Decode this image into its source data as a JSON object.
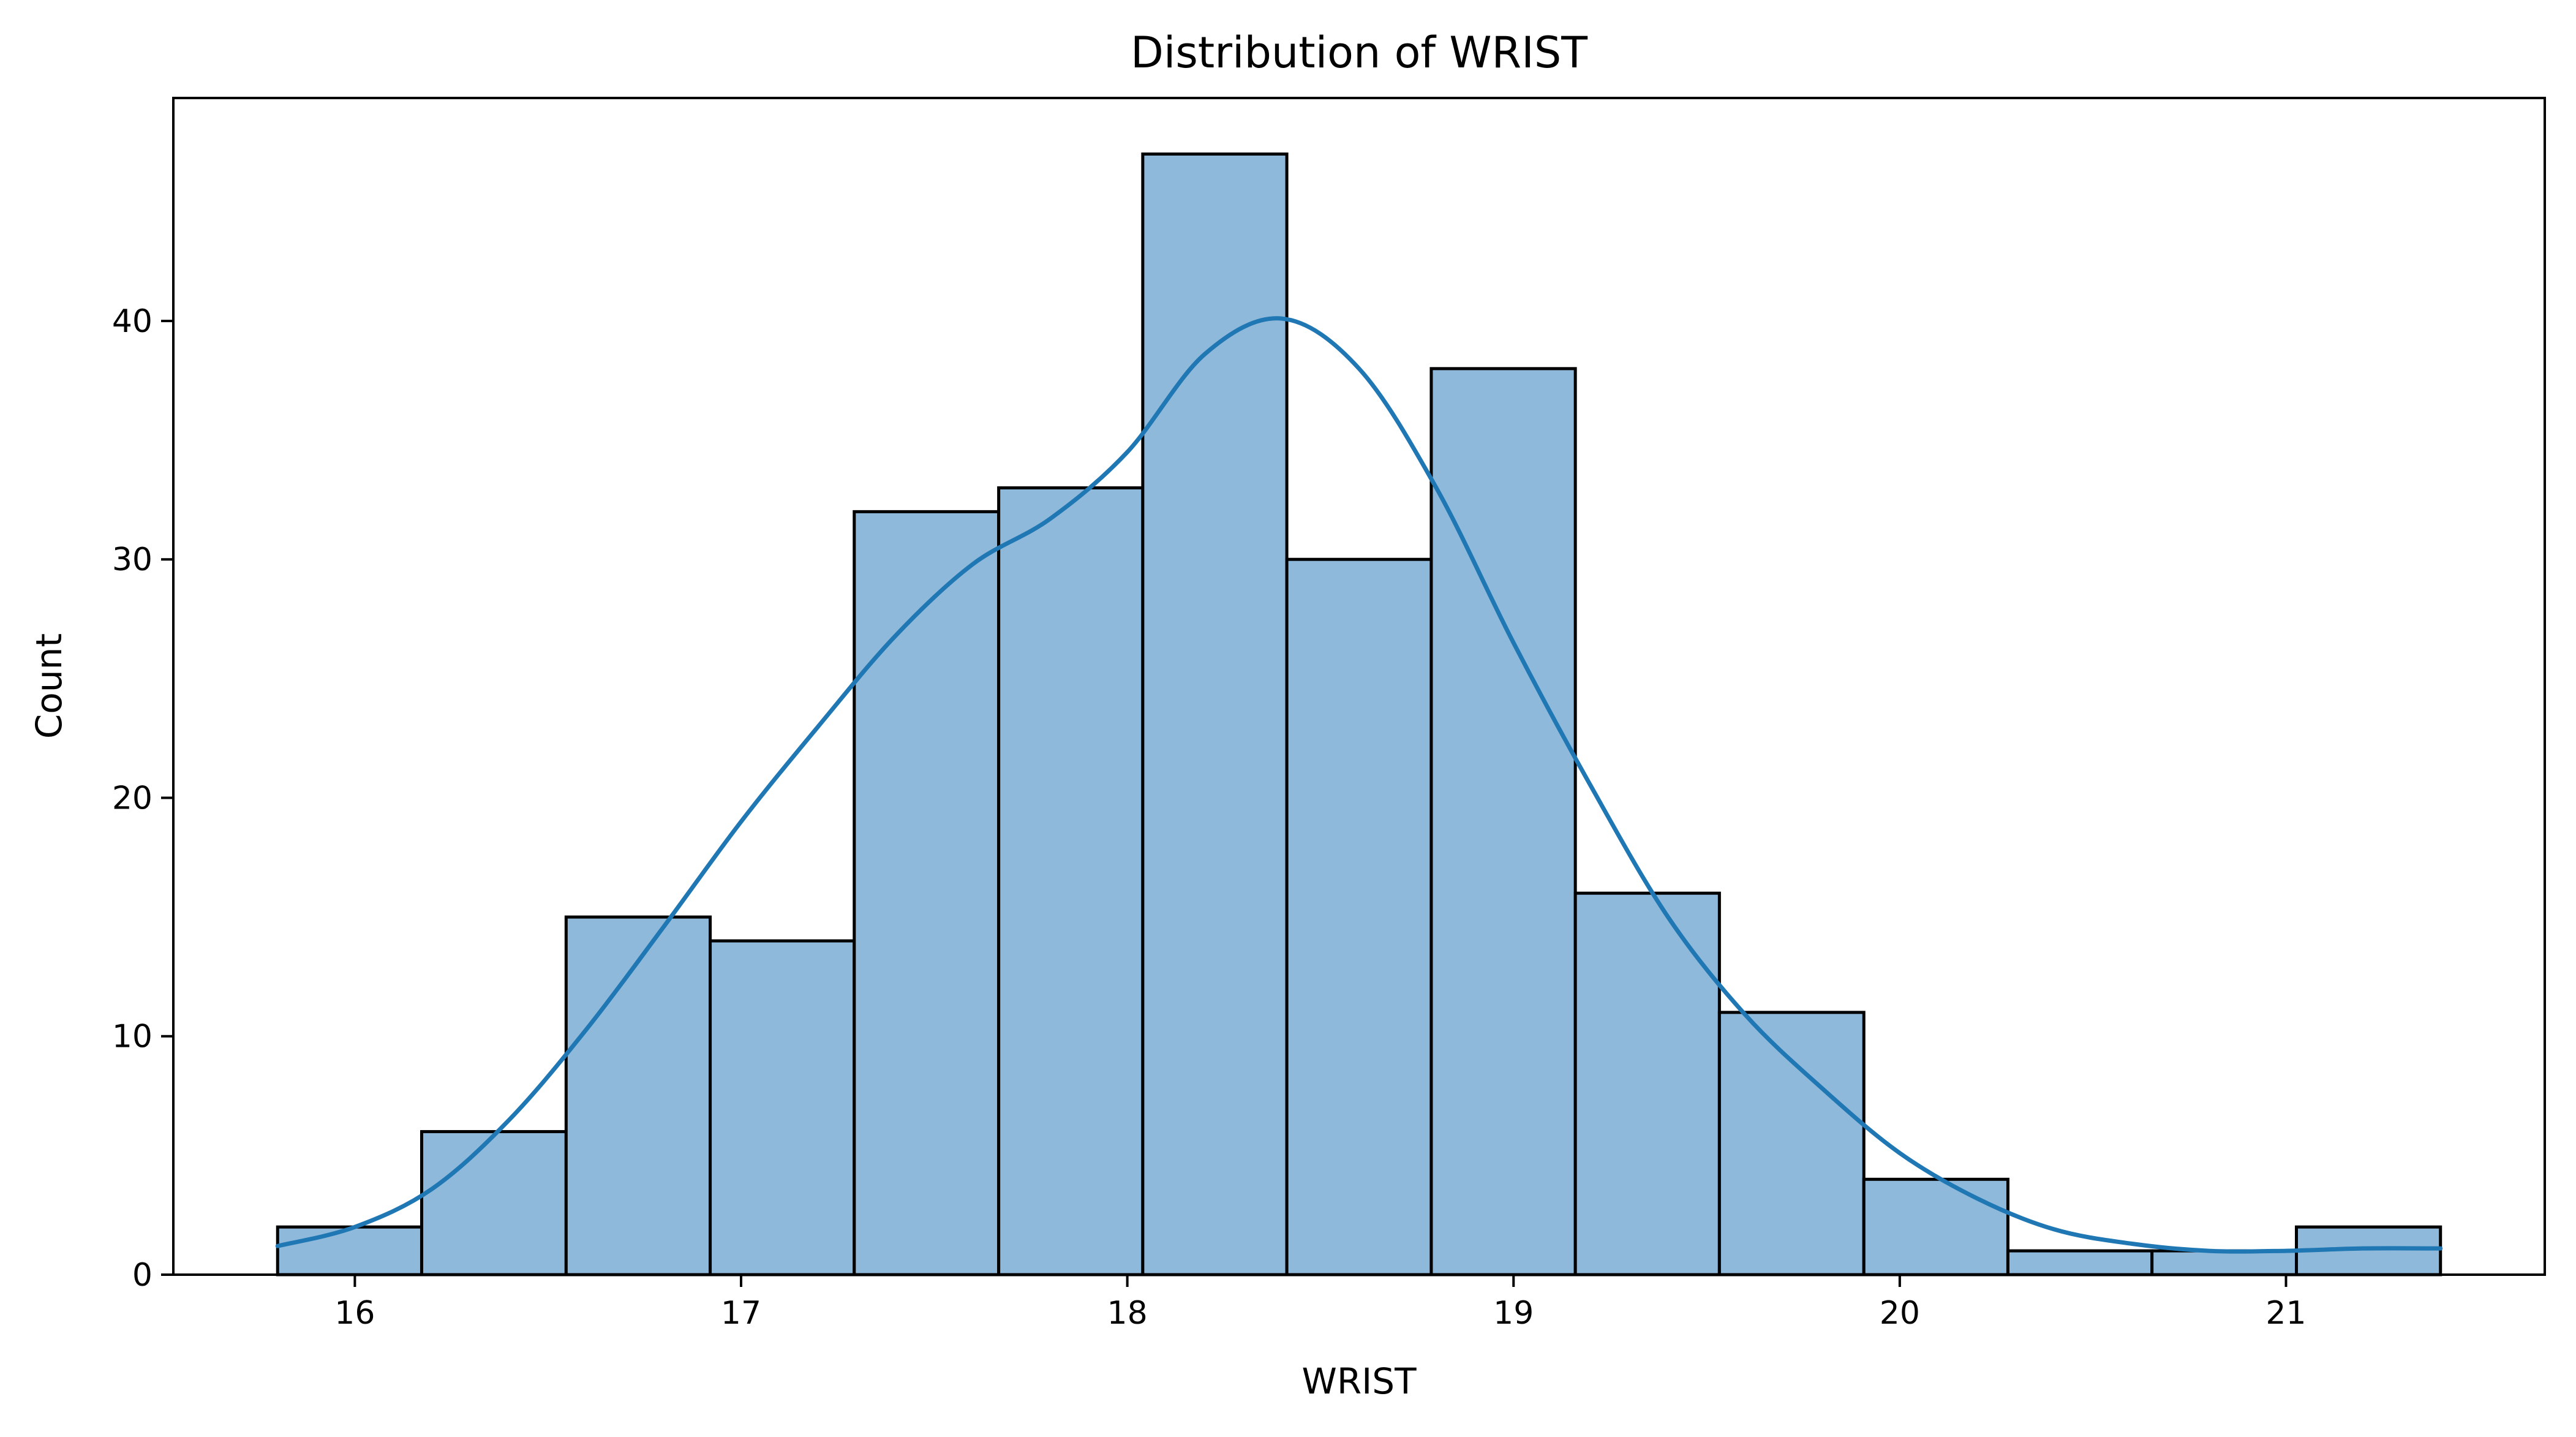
{
  "chart_data": {
    "type": "bar",
    "title": "Distribution of WRIST",
    "xlabel": "WRIST",
    "ylabel": "Count",
    "bin_edges": [
      15.8,
      16.173,
      16.547,
      16.92,
      17.293,
      17.667,
      18.04,
      18.413,
      18.787,
      19.16,
      19.533,
      19.907,
      20.28,
      20.653,
      21.027,
      21.4
    ],
    "counts": [
      2,
      6,
      15,
      14,
      32,
      33,
      47,
      30,
      38,
      16,
      11,
      4,
      1,
      1,
      2
    ],
    "kde": {
      "name": "",
      "x": [
        15.8,
        16.0,
        16.2,
        16.4,
        16.6,
        16.8,
        17.0,
        17.2,
        17.4,
        17.6,
        17.8,
        18.0,
        18.2,
        18.4,
        18.6,
        18.8,
        19.0,
        19.2,
        19.4,
        19.6,
        19.8,
        20.0,
        20.2,
        20.4,
        20.6,
        20.8,
        21.0,
        21.2,
        21.4
      ],
      "y": [
        1.2,
        2.0,
        3.6,
        6.5,
        10.3,
        14.6,
        19.0,
        23.0,
        26.8,
        29.8,
        31.7,
        34.5,
        38.6,
        40.1,
        38.0,
        33.0,
        26.5,
        20.5,
        15.0,
        10.9,
        7.8,
        5.1,
        3.2,
        1.9,
        1.3,
        1.0,
        1.0,
        1.1,
        1.1
      ]
    },
    "xlim": [
      15.53,
      21.67
    ],
    "ylim": [
      0,
      49.35
    ],
    "xticks": [
      16,
      17,
      18,
      19,
      20,
      21
    ],
    "yticks": [
      0,
      10,
      20,
      30,
      40
    ],
    "xtick_labels": [
      "16",
      "17",
      "18",
      "19",
      "20",
      "21"
    ],
    "ytick_labels": [
      "0",
      "10",
      "20",
      "30",
      "40"
    ],
    "grid": false,
    "colors": {
      "bar_fill": "#8fb9da",
      "bar_edge": "#000000",
      "kde_line": "#1f77b4"
    }
  }
}
